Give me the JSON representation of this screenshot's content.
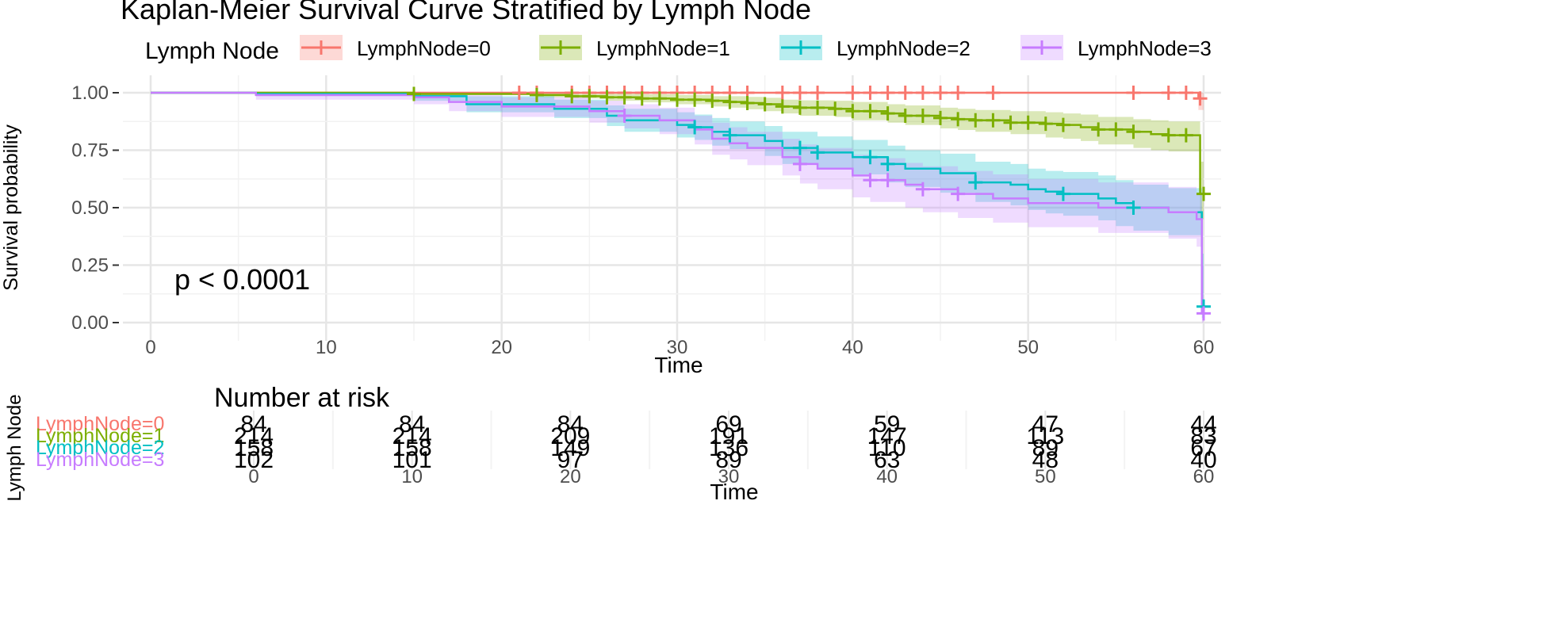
{
  "chart_data": {
    "type": "line",
    "title": "Kaplan-Meier Survival Curve Stratified by Lymph Node",
    "legend_title": "Lymph Node",
    "legend_position": "top",
    "xlabel": "Time",
    "ylabel": "Survival probability",
    "xlim": [
      0,
      60
    ],
    "ylim": [
      0,
      1
    ],
    "x_ticks": [
      0,
      10,
      20,
      30,
      40,
      50,
      60
    ],
    "x_tick_labels": [
      "0",
      "10",
      "20",
      "30",
      "40",
      "50",
      "60"
    ],
    "y_ticks": [
      0,
      0.25,
      0.5,
      0.75,
      1.0
    ],
    "y_tick_labels": [
      "0.00",
      "0.25",
      "0.50",
      "0.75",
      "1.00"
    ],
    "grid": true,
    "annotation": "p < 0.0001",
    "series": [
      {
        "name": "LymphNode=0",
        "color": "#F8766D",
        "steps": [
          [
            0,
            1.0
          ],
          [
            59.7,
            0.975
          ]
        ],
        "band": [
          [
            0,
            1.0,
            1.0
          ],
          [
            59.7,
            0.925,
            1.0
          ]
        ],
        "censor_times": [
          21,
          22,
          24,
          25,
          26,
          27,
          28,
          29,
          30,
          31,
          32,
          33,
          34,
          36,
          37,
          38,
          40,
          41,
          42,
          43,
          44,
          45,
          46,
          48,
          56,
          58,
          59,
          59.8
        ]
      },
      {
        "name": "LymphNode=1",
        "color": "#7CAE00",
        "steps": [
          [
            0,
            1.0
          ],
          [
            15,
            0.995
          ],
          [
            22,
            0.99
          ],
          [
            24,
            0.985
          ],
          [
            26,
            0.98
          ],
          [
            28,
            0.975
          ],
          [
            30,
            0.97
          ],
          [
            32,
            0.965
          ],
          [
            33,
            0.96
          ],
          [
            34,
            0.955
          ],
          [
            35,
            0.95
          ],
          [
            36,
            0.94
          ],
          [
            37,
            0.935
          ],
          [
            39,
            0.93
          ],
          [
            40,
            0.92
          ],
          [
            42,
            0.91
          ],
          [
            43,
            0.9
          ],
          [
            45,
            0.89
          ],
          [
            46,
            0.885
          ],
          [
            47,
            0.88
          ],
          [
            49,
            0.87
          ],
          [
            51,
            0.865
          ],
          [
            52,
            0.86
          ],
          [
            53,
            0.85
          ],
          [
            54,
            0.84
          ],
          [
            56,
            0.83
          ],
          [
            57,
            0.82
          ],
          [
            58,
            0.815
          ],
          [
            59.8,
            0.56
          ]
        ],
        "band": [
          [
            0,
            1.0,
            1.0
          ],
          [
            15,
            0.99,
            1.0
          ],
          [
            22,
            0.98,
            1.0
          ],
          [
            24,
            0.975,
            0.995
          ],
          [
            26,
            0.965,
            0.995
          ],
          [
            28,
            0.958,
            0.993
          ],
          [
            30,
            0.95,
            0.99
          ],
          [
            32,
            0.94,
            0.985
          ],
          [
            33,
            0.935,
            0.985
          ],
          [
            34,
            0.928,
            0.982
          ],
          [
            35,
            0.92,
            0.978
          ],
          [
            36,
            0.91,
            0.97
          ],
          [
            37,
            0.9,
            0.967
          ],
          [
            39,
            0.895,
            0.965
          ],
          [
            40,
            0.88,
            0.96
          ],
          [
            42,
            0.87,
            0.95
          ],
          [
            43,
            0.86,
            0.945
          ],
          [
            45,
            0.845,
            0.935
          ],
          [
            46,
            0.838,
            0.93
          ],
          [
            47,
            0.83,
            0.925
          ],
          [
            49,
            0.82,
            0.92
          ],
          [
            51,
            0.805,
            0.915
          ],
          [
            52,
            0.8,
            0.91
          ],
          [
            53,
            0.79,
            0.905
          ],
          [
            54,
            0.775,
            0.895
          ],
          [
            56,
            0.76,
            0.885
          ],
          [
            57,
            0.75,
            0.88
          ],
          [
            58,
            0.745,
            0.875
          ],
          [
            59.8,
            0.45,
            0.7
          ]
        ],
        "censor_times": [
          15,
          22,
          24,
          25,
          26,
          27,
          28,
          29,
          30,
          31,
          32,
          33,
          34,
          35,
          36,
          37,
          38,
          39,
          40,
          41,
          42,
          43,
          44,
          45,
          46,
          47,
          48,
          49,
          50,
          51,
          52,
          54,
          55,
          56,
          58,
          59,
          60
        ]
      },
      {
        "name": "LymphNode=2",
        "color": "#00BFC4",
        "steps": [
          [
            0,
            1.0
          ],
          [
            6,
            0.995
          ],
          [
            15,
            0.985
          ],
          [
            18,
            0.95
          ],
          [
            23,
            0.93
          ],
          [
            26,
            0.9
          ],
          [
            27,
            0.88
          ],
          [
            30,
            0.86
          ],
          [
            31,
            0.85
          ],
          [
            32,
            0.83
          ],
          [
            33,
            0.815
          ],
          [
            35,
            0.79
          ],
          [
            36,
            0.76
          ],
          [
            38,
            0.74
          ],
          [
            40,
            0.72
          ],
          [
            42,
            0.69
          ],
          [
            43,
            0.67
          ],
          [
            45,
            0.65
          ],
          [
            47,
            0.61
          ],
          [
            49,
            0.6
          ],
          [
            50,
            0.58
          ],
          [
            51,
            0.57
          ],
          [
            52,
            0.56
          ],
          [
            54,
            0.54
          ],
          [
            55,
            0.52
          ],
          [
            56,
            0.5
          ],
          [
            58,
            0.48
          ],
          [
            59.9,
            0.07
          ]
        ],
        "band": [
          [
            0,
            1.0,
            1.0
          ],
          [
            6,
            0.985,
            1.0
          ],
          [
            15,
            0.965,
            1.0
          ],
          [
            18,
            0.915,
            0.985
          ],
          [
            23,
            0.89,
            0.97
          ],
          [
            26,
            0.855,
            0.945
          ],
          [
            27,
            0.83,
            0.93
          ],
          [
            30,
            0.805,
            0.915
          ],
          [
            31,
            0.795,
            0.905
          ],
          [
            32,
            0.77,
            0.89
          ],
          [
            33,
            0.755,
            0.875
          ],
          [
            35,
            0.725,
            0.855
          ],
          [
            36,
            0.69,
            0.83
          ],
          [
            38,
            0.67,
            0.81
          ],
          [
            40,
            0.645,
            0.795
          ],
          [
            42,
            0.61,
            0.77
          ],
          [
            43,
            0.59,
            0.75
          ],
          [
            45,
            0.565,
            0.735
          ],
          [
            47,
            0.525,
            0.7
          ],
          [
            49,
            0.51,
            0.69
          ],
          [
            50,
            0.49,
            0.67
          ],
          [
            51,
            0.475,
            0.66
          ],
          [
            52,
            0.465,
            0.655
          ],
          [
            54,
            0.445,
            0.64
          ],
          [
            55,
            0.42,
            0.62
          ],
          [
            56,
            0.4,
            0.6
          ],
          [
            58,
            0.38,
            0.585
          ],
          [
            59.9,
            0.02,
            0.3
          ]
        ],
        "censor_times": [
          31,
          33,
          37,
          38,
          41,
          42,
          47,
          52,
          56,
          60
        ]
      },
      {
        "name": "LymphNode=3",
        "color": "#C77CFF",
        "steps": [
          [
            0,
            1.0
          ],
          [
            6,
            0.99
          ],
          [
            15,
            0.98
          ],
          [
            17,
            0.96
          ],
          [
            20,
            0.94
          ],
          [
            25,
            0.92
          ],
          [
            27,
            0.9
          ],
          [
            29,
            0.88
          ],
          [
            31,
            0.84
          ],
          [
            32,
            0.8
          ],
          [
            33,
            0.78
          ],
          [
            34,
            0.76
          ],
          [
            36,
            0.72
          ],
          [
            37,
            0.69
          ],
          [
            38,
            0.67
          ],
          [
            40,
            0.64
          ],
          [
            41,
            0.62
          ],
          [
            43,
            0.6
          ],
          [
            44,
            0.58
          ],
          [
            46,
            0.56
          ],
          [
            48,
            0.54
          ],
          [
            50,
            0.52
          ],
          [
            54,
            0.5
          ],
          [
            58,
            0.48
          ],
          [
            59.6,
            0.45
          ],
          [
            59.9,
            0.04
          ]
        ],
        "band": [
          [
            0,
            1.0,
            1.0
          ],
          [
            6,
            0.97,
            1.0
          ],
          [
            15,
            0.95,
            1.0
          ],
          [
            17,
            0.92,
            0.99
          ],
          [
            20,
            0.895,
            0.98
          ],
          [
            25,
            0.87,
            0.965
          ],
          [
            27,
            0.845,
            0.95
          ],
          [
            29,
            0.82,
            0.935
          ],
          [
            31,
            0.775,
            0.9
          ],
          [
            32,
            0.73,
            0.87
          ],
          [
            33,
            0.71,
            0.85
          ],
          [
            34,
            0.685,
            0.83
          ],
          [
            36,
            0.64,
            0.8
          ],
          [
            37,
            0.605,
            0.775
          ],
          [
            38,
            0.58,
            0.76
          ],
          [
            40,
            0.545,
            0.73
          ],
          [
            41,
            0.525,
            0.715
          ],
          [
            43,
            0.5,
            0.695
          ],
          [
            44,
            0.48,
            0.68
          ],
          [
            46,
            0.455,
            0.66
          ],
          [
            48,
            0.435,
            0.645
          ],
          [
            50,
            0.415,
            0.625
          ],
          [
            54,
            0.39,
            0.61
          ],
          [
            58,
            0.365,
            0.59
          ],
          [
            59.6,
            0.33,
            0.565
          ],
          [
            59.9,
            0.0,
            0.25
          ]
        ],
        "censor_times": [
          27,
          37,
          41,
          42,
          44,
          46,
          60
        ]
      }
    ],
    "risk_table": {
      "title": "Number at risk",
      "ylabel": "Lymph Node",
      "xlabel": "Time",
      "times": [
        "0",
        "10",
        "20",
        "30",
        "40",
        "50",
        "60"
      ],
      "rows": [
        {
          "label": "LymphNode=0",
          "color": "#F8766D",
          "values": [
            "84",
            "84",
            "84",
            "69",
            "59",
            "47",
            "44"
          ]
        },
        {
          "label": "LymphNode=1",
          "color": "#7CAE00",
          "values": [
            "214",
            "214",
            "209",
            "191",
            "147",
            "113",
            "83"
          ]
        },
        {
          "label": "LymphNode=2",
          "color": "#00BFC4",
          "values": [
            "158",
            "158",
            "149",
            "136",
            "110",
            "89",
            "67"
          ]
        },
        {
          "label": "LymphNode=3",
          "color": "#C77CFF",
          "values": [
            "102",
            "101",
            "97",
            "89",
            "63",
            "48",
            "40"
          ]
        }
      ]
    }
  }
}
